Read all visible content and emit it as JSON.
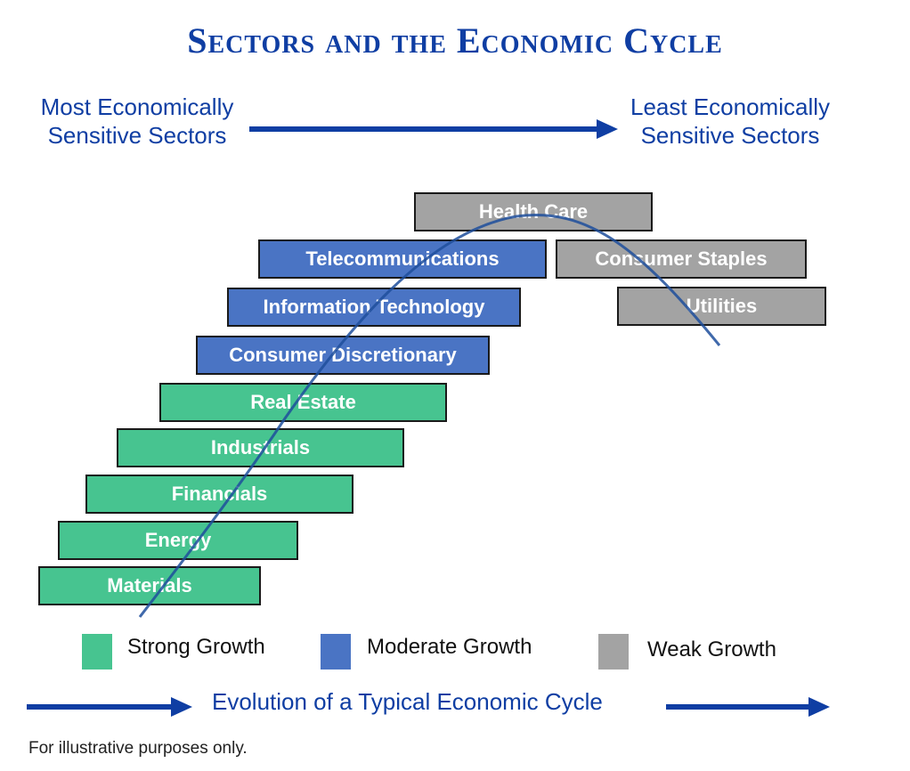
{
  "title": "Sectors and the Economic Cycle",
  "left_label": [
    "Most Economically",
    "Sensitive Sectors"
  ],
  "right_label": [
    "Least Economically",
    "Sensitive Sectors"
  ],
  "sectors": [
    {
      "name": "Health Care",
      "growth": "Weak Growth"
    },
    {
      "name": "Telecommunications",
      "growth": "Moderate Growth"
    },
    {
      "name": "Consumer Staples",
      "growth": "Weak Growth"
    },
    {
      "name": "Information Technology",
      "growth": "Moderate Growth"
    },
    {
      "name": "Utilities",
      "growth": "Weak Growth"
    },
    {
      "name": "Consumer Discretionary",
      "growth": "Moderate Growth"
    },
    {
      "name": "Real Estate",
      "growth": "Strong Growth"
    },
    {
      "name": "Industrials",
      "growth": "Strong Growth"
    },
    {
      "name": "Financials",
      "growth": "Strong Growth"
    },
    {
      "name": "Energy",
      "growth": "Strong Growth"
    },
    {
      "name": "Materials",
      "growth": "Strong Growth"
    }
  ],
  "legend": [
    {
      "label": "Strong Growth",
      "color": "#47c490"
    },
    {
      "label": "Moderate Growth",
      "color": "#4a74c4"
    },
    {
      "label": "Weak Growth",
      "color": "#a3a3a3"
    }
  ],
  "bottom_label": "Evolution of a Typical Economic Cycle",
  "footnote": "For illustrative purposes only.",
  "colors": {
    "accent": "#0f3ea3",
    "strong": "#47c490",
    "moderate": "#4a74c4",
    "weak": "#a3a3a3"
  }
}
